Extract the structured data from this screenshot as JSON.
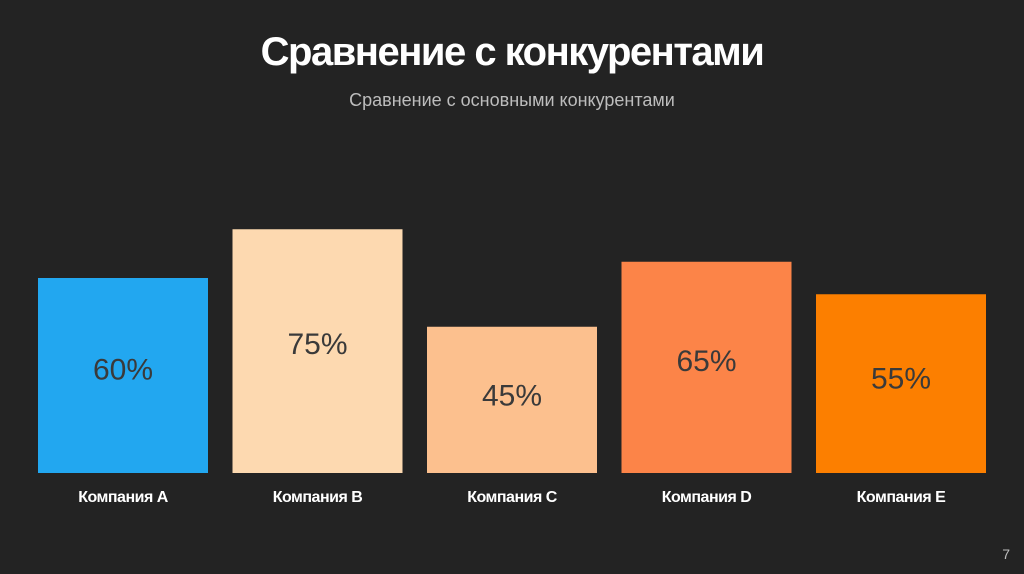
{
  "slide": {
    "title": "Сравнение с конкурентами",
    "subtitle": "Сравнение с основными конкурентами",
    "page_number": "7"
  },
  "chart_data": {
    "type": "bar",
    "title": "Сравнение с конкурентами",
    "subtitle": "Сравнение с основными конкурентами",
    "categories": [
      "Компания A",
      "Компания B",
      "Компания C",
      "Компания D",
      "Компания E"
    ],
    "values": [
      60,
      75,
      45,
      65,
      55
    ],
    "value_labels": [
      "60%",
      "75%",
      "45%",
      "65%",
      "55%"
    ],
    "colors": [
      "#22a7f0",
      "#fdd9b0",
      "#fcc08e",
      "#fc8448",
      "#fc7f00"
    ],
    "ylim": [
      0,
      100
    ],
    "grid": false,
    "legend": "none",
    "xlabel": "",
    "ylabel": ""
  }
}
